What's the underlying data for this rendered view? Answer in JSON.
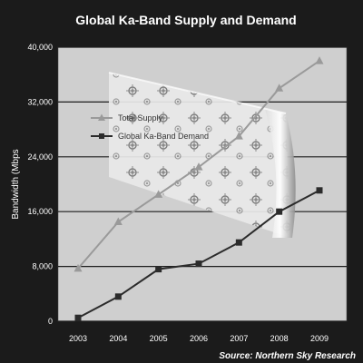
{
  "chart_data": {
    "type": "line",
    "title": "Global Ka-Band Supply and Demand",
    "ylabel": "Bandwidth (Mbps",
    "xlabel": "",
    "source": "Source: Northern Sky Research",
    "categories": [
      "2003",
      "2004",
      "2005",
      "2006",
      "2007",
      "2008",
      "2009"
    ],
    "ylim": [
      0,
      40000
    ],
    "yticks": [
      "0",
      "8,000",
      "16,000",
      "24,000",
      "32,000",
      "40,000"
    ],
    "yticks_values": [
      0,
      8000,
      16000,
      24000,
      32000,
      40000
    ],
    "grid": true,
    "legend_position": "top-left inside plot",
    "series": [
      {
        "name": "Total Supply",
        "values": [
          7700,
          14500,
          18500,
          22500,
          27000,
          34000,
          38000
        ],
        "color": "#9a9a9a",
        "marker": "triangle"
      },
      {
        "name": "Global Ka-Band Demand",
        "values": [
          500,
          3600,
          7600,
          8400,
          11500,
          16000,
          19100
        ],
        "color": "#2b2b2b",
        "marker": "square"
      }
    ]
  }
}
